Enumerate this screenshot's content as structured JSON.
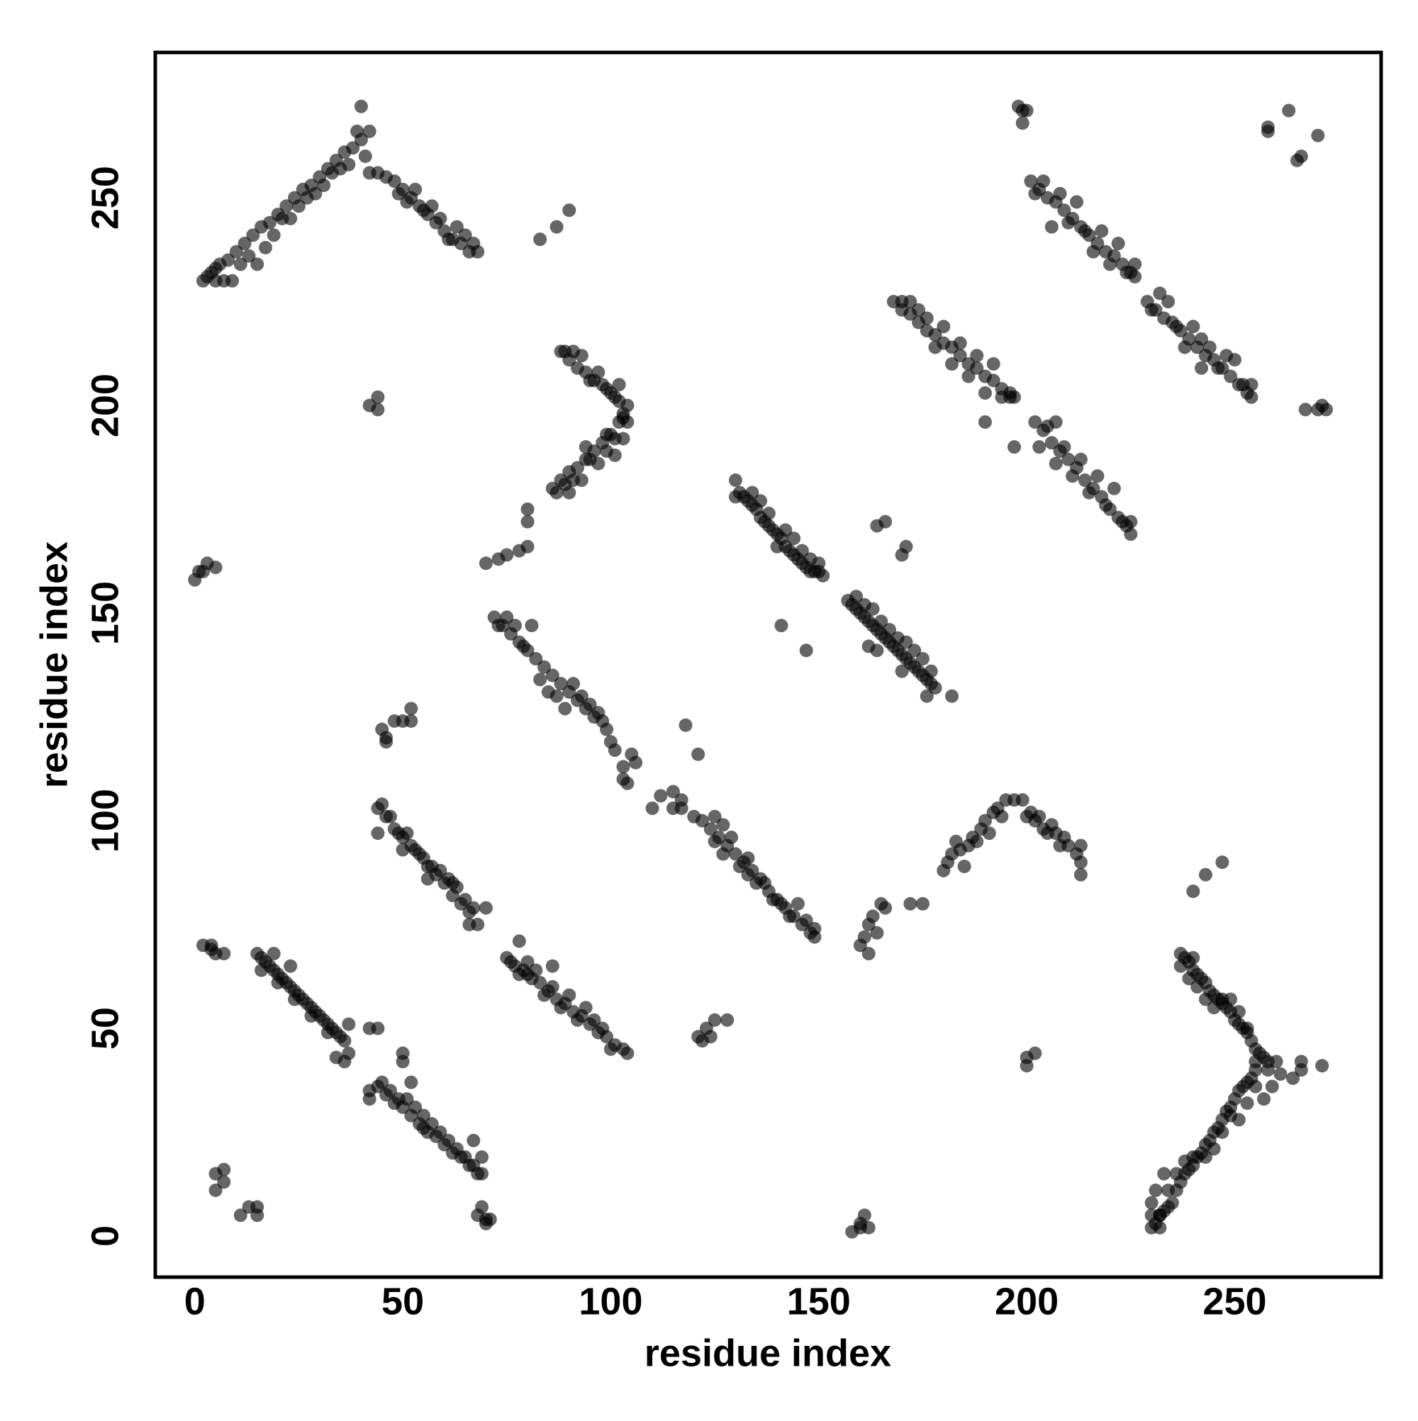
{
  "chart_data": {
    "type": "scatter",
    "xlabel": "residue index",
    "ylabel": "residue index",
    "color": "#000000",
    "alpha": 0.6,
    "xlim": [
      -9.5,
      285.2
    ],
    "ylim": [
      -9.9,
      285.0
    ],
    "xticks": [
      0,
      50,
      100,
      150,
      200,
      250
    ],
    "yticks": [
      0,
      50,
      100,
      150,
      200,
      250
    ],
    "x": [
      15,
      16,
      17,
      18,
      19,
      20,
      21,
      22,
      23,
      24,
      25,
      26,
      27,
      28,
      29,
      30,
      31,
      32,
      33,
      34,
      35,
      36,
      16,
      20,
      24,
      28,
      32,
      34,
      36,
      37,
      37,
      23,
      19,
      44,
      46,
      48,
      50,
      52,
      54,
      56,
      58,
      60,
      62,
      64,
      66,
      68,
      45,
      49,
      51,
      53,
      55,
      57,
      59,
      61,
      63,
      65,
      67,
      69,
      47,
      50,
      50,
      52,
      42,
      42,
      69,
      67,
      55,
      2,
      4,
      5,
      7,
      4,
      5,
      7,
      5,
      7,
      11,
      13,
      15,
      15,
      68,
      70,
      70,
      69,
      71,
      42,
      44,
      44,
      46,
      48,
      50,
      52,
      54,
      56,
      58,
      60,
      62,
      64,
      66,
      68,
      45,
      47,
      49,
      51,
      53,
      55,
      57,
      59,
      61,
      63,
      65,
      67,
      44,
      50,
      56,
      62,
      66,
      70,
      45,
      46,
      48,
      50,
      52,
      52,
      46,
      75,
      77,
      79,
      81,
      83,
      85,
      87,
      89,
      91,
      93,
      95,
      97,
      99,
      101,
      103,
      104,
      76,
      78,
      80,
      82,
      84,
      86,
      88,
      90,
      92,
      94,
      96,
      98,
      100,
      78,
      80,
      86,
      121,
      123,
      125,
      122,
      128,
      124,
      72,
      74,
      76,
      78,
      80,
      82,
      84,
      86,
      88,
      90,
      92,
      94,
      96,
      98,
      73,
      75,
      77,
      79,
      81,
      83,
      85,
      87,
      89,
      91,
      93,
      95,
      97,
      99,
      100,
      101,
      103,
      103,
      105,
      106,
      104,
      110,
      112,
      115,
      115,
      117,
      117,
      120,
      122,
      125,
      124,
      126,
      128,
      130,
      132,
      134,
      136,
      138,
      140,
      142,
      144,
      146,
      148,
      149,
      125,
      127,
      129,
      131,
      133,
      135,
      137,
      139,
      141,
      143,
      145,
      147,
      149,
      127,
      133,
      118,
      121,
      160,
      161,
      162,
      162,
      163,
      164,
      165,
      166,
      172,
      175,
      180,
      181,
      182,
      183,
      184,
      185,
      186,
      187,
      188,
      189,
      190,
      191,
      192,
      193,
      194,
      195,
      197,
      199,
      200,
      201,
      202,
      203,
      204,
      205,
      206,
      207,
      208,
      209,
      210,
      212,
      213,
      213,
      213,
      200,
      202,
      200,
      158,
      160,
      161,
      162,
      160,
      230,
      231,
      232,
      233,
      234,
      235,
      236,
      237,
      238,
      239,
      240,
      241,
      242,
      243,
      244,
      245,
      246,
      247,
      248,
      249,
      250,
      251,
      252,
      253,
      254,
      255,
      230,
      230,
      231,
      233,
      234,
      236,
      238,
      240,
      243,
      245,
      247,
      249,
      251,
      253,
      255,
      257,
      259,
      261,
      264,
      266,
      266,
      271,
      232,
      232,
      237,
      238,
      239,
      240,
      241,
      242,
      243,
      244,
      245,
      246,
      247,
      248,
      249,
      250,
      251,
      252,
      253,
      254,
      255,
      256,
      257,
      258,
      260,
      237,
      239,
      241,
      243,
      245,
      247,
      249,
      251,
      253,
      255,
      258,
      240,
      240,
      243,
      247,
      2,
      4,
      6,
      8,
      10,
      12,
      14,
      16,
      18,
      20,
      22,
      24,
      26,
      28,
      30,
      32,
      34,
      36,
      38,
      40,
      3,
      5,
      7,
      9,
      11,
      13,
      15,
      17,
      19,
      21,
      23,
      25,
      27,
      29,
      31,
      33,
      35,
      37,
      39,
      40,
      41,
      42,
      44,
      42,
      5,
      46,
      48,
      50,
      52,
      54,
      56,
      58,
      60,
      62,
      64,
      66,
      68,
      51,
      53,
      55,
      57,
      59,
      61,
      63,
      65,
      67,
      49,
      83,
      87,
      90,
      0,
      2,
      3,
      5,
      1,
      42,
      44,
      44,
      70,
      73,
      75,
      78,
      80,
      80,
      80,
      86,
      88,
      90,
      92,
      94,
      96,
      98,
      100,
      102,
      103,
      87,
      89,
      90,
      91,
      93,
      94,
      95,
      97,
      99,
      101,
      101,
      103,
      99,
      104,
      102,
      100,
      98,
      96,
      94,
      92,
      90,
      88,
      89,
      91,
      93,
      95,
      97,
      99,
      101,
      103,
      104,
      102,
      130,
      131,
      132,
      133,
      134,
      135,
      136,
      137,
      138,
      139,
      140,
      141,
      142,
      143,
      144,
      145,
      146,
      147,
      148,
      149,
      150,
      151,
      130,
      134,
      136,
      138,
      140,
      142,
      144,
      146,
      148,
      150,
      157,
      158,
      159,
      160,
      161,
      162,
      163,
      164,
      165,
      166,
      167,
      168,
      169,
      170,
      171,
      172,
      173,
      174,
      175,
      176,
      177,
      178,
      182,
      159,
      161,
      163,
      165,
      167,
      169,
      171,
      173,
      175,
      177,
      162,
      164,
      170,
      176,
      141,
      147,
      164,
      166,
      170,
      171,
      168,
      170,
      172,
      174,
      176,
      178,
      180,
      182,
      184,
      186,
      188,
      190,
      192,
      194,
      196,
      197,
      170,
      172,
      174,
      176,
      178,
      180,
      182,
      184,
      186,
      188,
      190,
      192,
      194,
      196,
      190,
      197,
      202,
      204,
      206,
      208,
      210,
      212,
      214,
      216,
      218,
      220,
      222,
      224,
      225,
      203,
      205,
      207,
      209,
      211,
      213,
      215,
      217,
      219,
      221,
      223,
      225,
      207,
      198,
      200,
      199,
      199,
      201,
      203,
      205,
      207,
      209,
      211,
      213,
      215,
      217,
      219,
      221,
      223,
      225,
      226,
      202,
      204,
      206,
      208,
      210,
      212,
      214,
      216,
      218,
      220,
      222,
      224,
      226,
      229,
      231,
      233,
      235,
      237,
      239,
      241,
      243,
      245,
      247,
      249,
      251,
      253,
      254,
      230,
      232,
      234,
      236,
      238,
      240,
      242,
      244,
      246,
      248,
      250,
      252,
      254,
      242,
      258,
      263,
      266,
      265,
      270,
      258,
      267,
      270,
      272,
      271
    ],
    "values": [
      68,
      67,
      66,
      65,
      64,
      63,
      62,
      61,
      60,
      59,
      58,
      57,
      56,
      55,
      54,
      53,
      52,
      51,
      50,
      49,
      48,
      47,
      64,
      61,
      57,
      53,
      49,
      43,
      42,
      44,
      51,
      65,
      68,
      36,
      34,
      32,
      31,
      29,
      27,
      25,
      24,
      22,
      20,
      19,
      17,
      15,
      37,
      33,
      33,
      31,
      29,
      27,
      25,
      23,
      21,
      19,
      17,
      15,
      35,
      42,
      44,
      37,
      35,
      33,
      19,
      23,
      26,
      70,
      70,
      68,
      68,
      69,
      15,
      16,
      11,
      13,
      5,
      7,
      7,
      5,
      5,
      3,
      4,
      7,
      4,
      50,
      50,
      103,
      101,
      98,
      96,
      94,
      92,
      89,
      87,
      85,
      82,
      80,
      78,
      75,
      104,
      101,
      97,
      97,
      93,
      91,
      89,
      88,
      86,
      84,
      81,
      79,
      97,
      93,
      86,
      85,
      75,
      79,
      122,
      120,
      124,
      124,
      127,
      124,
      119,
      67,
      65,
      64,
      62,
      61,
      59,
      57,
      56,
      54,
      53,
      51,
      49,
      48,
      46,
      45,
      44,
      66,
      63,
      66,
      64,
      58,
      60,
      55,
      58,
      52,
      55,
      52,
      50,
      45,
      71,
      63,
      65,
      48,
      50,
      52,
      47,
      52,
      48,
      149,
      147,
      145,
      143,
      141,
      139,
      137,
      135,
      133,
      131,
      129,
      127,
      125,
      124,
      147,
      149,
      147,
      142,
      147,
      134,
      131,
      130,
      127,
      133,
      130,
      128,
      126,
      122,
      119,
      117,
      113,
      110,
      116,
      114,
      109,
      103,
      106,
      107,
      103,
      105,
      103,
      101,
      100,
      101,
      98,
      96,
      94,
      92,
      90,
      88,
      86,
      83,
      81,
      79,
      77,
      75,
      73,
      72,
      95,
      92,
      96,
      89,
      91,
      85,
      85,
      81,
      80,
      77,
      80,
      76,
      74,
      99,
      87,
      123,
      116,
      70,
      72,
      68,
      75,
      77,
      73,
      80,
      79,
      80,
      80,
      88,
      90,
      92,
      95,
      93,
      89,
      94,
      96,
      95,
      98,
      100,
      97,
      102,
      103,
      101,
      105,
      105,
      105,
      101,
      102,
      100,
      101,
      98,
      97,
      99,
      97,
      94,
      96,
      94,
      92,
      94,
      90,
      87,
      43,
      44,
      41,
      1,
      3,
      5,
      2,
      2,
      2,
      3,
      5,
      6,
      7,
      8,
      11,
      13,
      15,
      16,
      17,
      19,
      20,
      22,
      23,
      25,
      26,
      28,
      30,
      31,
      33,
      35,
      36,
      37,
      38,
      40,
      5,
      8,
      11,
      15,
      11,
      15,
      18,
      19,
      19,
      21,
      25,
      29,
      28,
      32,
      36,
      33,
      36,
      39,
      38,
      40,
      42,
      41,
      2,
      5,
      68,
      67,
      66,
      64,
      63,
      62,
      61,
      59,
      58,
      57,
      56,
      55,
      54,
      52,
      51,
      50,
      49,
      47,
      45,
      44,
      43,
      42,
      42,
      65,
      62,
      60,
      57,
      55,
      57,
      57,
      54,
      50,
      42,
      40,
      67,
      83,
      87,
      90,
      230,
      232,
      234,
      235,
      237,
      239,
      241,
      243,
      244,
      246,
      248,
      250,
      252,
      253,
      255,
      257,
      259,
      261,
      262,
      264,
      231,
      230,
      230,
      230,
      234,
      236,
      234,
      238,
      241,
      245,
      245,
      248,
      250,
      251,
      253,
      256,
      257,
      258,
      266,
      272,
      260,
      256,
      256,
      266,
      233,
      255,
      254,
      252,
      250,
      248,
      246,
      244,
      242,
      240,
      239,
      237,
      237,
      249,
      252,
      247,
      248,
      245,
      240,
      243,
      241,
      239,
      251,
      240,
      243,
      247,
      158,
      160,
      162,
      161,
      160,
      200,
      202,
      199,
      162,
      163,
      164,
      165,
      166,
      172,
      175,
      180,
      182,
      184,
      185,
      187,
      189,
      191,
      193,
      196,
      197,
      179,
      181,
      179,
      182,
      182,
      190,
      187,
      186,
      189,
      192,
      188,
      192,
      193,
      200,
      201,
      203,
      205,
      206,
      208,
      209,
      211,
      213,
      213,
      213,
      212,
      206,
      208,
      204,
      202,
      198,
      196,
      205,
      182,
      179,
      178,
      177,
      176,
      175,
      173,
      172,
      171,
      170,
      169,
      168,
      166,
      165,
      164,
      163,
      162,
      161,
      160,
      160,
      160,
      159,
      178,
      179,
      177,
      174,
      166,
      170,
      168,
      165,
      163,
      162,
      153,
      152,
      151,
      150,
      149,
      148,
      147,
      146,
      145,
      144,
      143,
      142,
      141,
      140,
      139,
      138,
      137,
      136,
      135,
      134,
      133,
      132,
      130,
      154,
      152,
      151,
      148,
      146,
      144,
      143,
      141,
      139,
      136,
      142,
      141,
      136,
      130,
      147,
      141,
      171,
      172,
      164,
      166,
      225,
      223,
      222,
      220,
      218,
      217,
      215,
      214,
      212,
      210,
      209,
      207,
      206,
      204,
      203,
      202,
      225,
      225,
      223,
      221,
      214,
      219,
      210,
      215,
      207,
      212,
      203,
      210,
      202,
      202,
      196,
      190,
      196,
      194,
      191,
      189,
      187,
      185,
      182,
      180,
      178,
      175,
      173,
      171,
      169,
      190,
      195,
      186,
      190,
      183,
      187,
      179,
      183,
      176,
      180,
      172,
      172,
      196,
      272,
      271,
      268,
      271,
      254,
      252,
      250,
      249,
      247,
      245,
      243,
      241,
      239,
      237,
      236,
      234,
      232,
      231,
      251,
      254,
      243,
      251,
      244,
      249,
      242,
      237,
      242,
      234,
      239,
      232,
      234,
      225,
      223,
      221,
      220,
      218,
      216,
      214,
      212,
      211,
      209,
      207,
      205,
      203,
      202,
      223,
      227,
      225,
      219,
      214,
      219,
      216,
      214,
      209,
      212,
      211,
      205,
      205,
      209,
      267,
      271,
      260,
      259,
      265,
      266,
      199,
      199,
      199,
      200
    ]
  }
}
